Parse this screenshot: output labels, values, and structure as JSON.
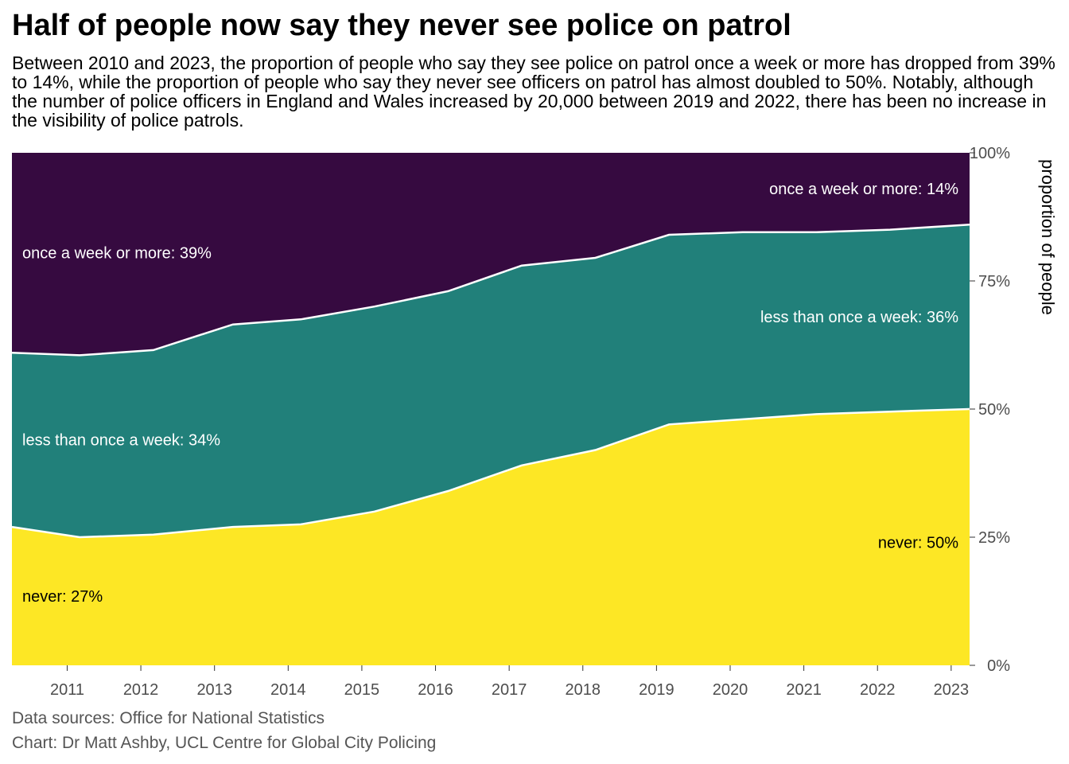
{
  "title": "Half of people now say they never see police on patrol",
  "subtitle": "Between 2010 and 2023, the proportion of people who say they see police on patrol once a week or more has dropped from 39% to 14%, while the proportion of people who say they never see officers on patrol has almost doubled to 50%. Notably, although the number of police officers in England and Wales increased by 20,000 between 2019 and 2022, there has been no increase in the visibility of police patrols.",
  "caption": {
    "sources": "Data sources: Office for National Statistics",
    "credit": "Chart: Dr Matt Ashby, UCL Centre for Global City Policing"
  },
  "colors": {
    "never": "#fde725",
    "less_than_weekly": "#21807a",
    "weekly_or_more": "#360a40"
  },
  "chart_data": {
    "type": "area",
    "stacked": true,
    "ylabel": "proportion of people",
    "ylim": [
      0,
      1
    ],
    "y_axis_position": "right",
    "y_ticks": [
      0,
      0.25,
      0.5,
      0.75,
      1.0
    ],
    "y_tick_labels": [
      "0%",
      "25%",
      "50%",
      "75%",
      "100%"
    ],
    "x_ticks": [
      2011,
      2012,
      2013,
      2014,
      2015,
      2016,
      2017,
      2018,
      2019,
      2020,
      2021,
      2022,
      2023
    ],
    "x": [
      2010.25,
      2011.17,
      2012.17,
      2013.25,
      2014.17,
      2015.17,
      2016.17,
      2017.17,
      2018.17,
      2019.17,
      2020.17,
      2021.17,
      2022.17,
      2023.25
    ],
    "series": [
      {
        "key": "never",
        "values": [
          0.27,
          0.25,
          0.255,
          0.27,
          0.275,
          0.3,
          0.34,
          0.39,
          0.42,
          0.47,
          0.48,
          0.49,
          0.495,
          0.5
        ]
      },
      {
        "key": "less_than_weekly",
        "values": [
          0.34,
          0.355,
          0.36,
          0.395,
          0.4,
          0.4,
          0.39,
          0.39,
          0.375,
          0.37,
          0.365,
          0.355,
          0.355,
          0.36
        ]
      },
      {
        "key": "weekly_or_more",
        "values": [
          0.39,
          0.395,
          0.385,
          0.335,
          0.325,
          0.3,
          0.27,
          0.22,
          0.205,
          0.16,
          0.155,
          0.155,
          0.15,
          0.14
        ]
      }
    ],
    "annotations": [
      {
        "series": "weekly_or_more",
        "text": "once a week or more: 39%",
        "x": 2010.25,
        "y": 0.805,
        "anchor": "start",
        "color": "#ffffff"
      },
      {
        "series": "less_than_weekly",
        "text": "less than once a week: 34%",
        "x": 2010.25,
        "y": 0.44,
        "anchor": "start",
        "color": "#ffffff"
      },
      {
        "series": "never",
        "text": "never: 27%",
        "x": 2010.25,
        "y": 0.135,
        "anchor": "start",
        "color": "#000000"
      },
      {
        "series": "weekly_or_more",
        "text": "once a week or more: 14%",
        "x": 2023.25,
        "y": 0.93,
        "anchor": "end",
        "color": "#ffffff"
      },
      {
        "series": "less_than_weekly",
        "text": "less than once a week: 36%",
        "x": 2023.25,
        "y": 0.68,
        "anchor": "end",
        "color": "#ffffff"
      },
      {
        "series": "never",
        "text": "never: 50%",
        "x": 2023.25,
        "y": 0.24,
        "anchor": "end",
        "color": "#000000"
      }
    ]
  }
}
